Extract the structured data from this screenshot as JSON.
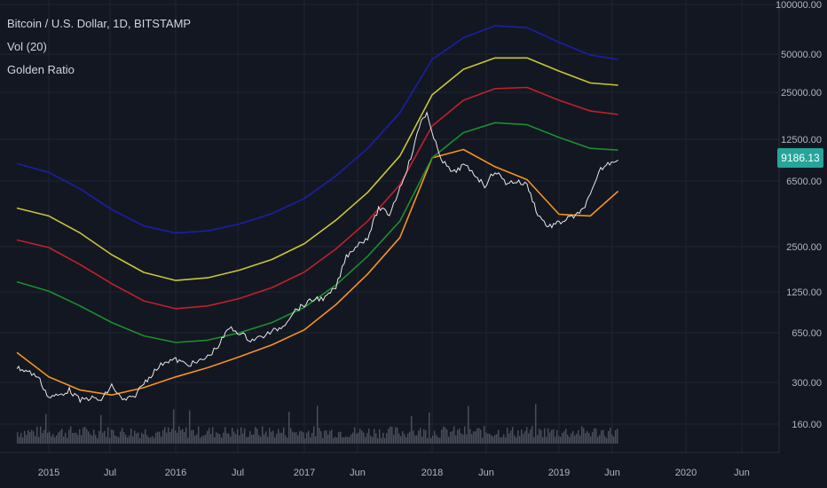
{
  "legend": {
    "symbol": "Bitcoin / U.S. Dollar, 1D, BITSTAMP",
    "volume": "Vol (20)",
    "indicator": "Golden Ratio"
  },
  "price_badge": "9186.13",
  "colors": {
    "background": "#131722",
    "grid": "#1f2433",
    "axis_text": "#b2b5be",
    "candle_up": "#e8e8e8",
    "candle_down": "#8a8e99",
    "volume": "#4a4e5a",
    "badge": "#26a69a",
    "ma": "#f7931e",
    "band_green": "#1b8f2c",
    "band_red": "#c0212a",
    "band_yellow": "#c9c633",
    "band_blue": "#1a1fa8"
  },
  "chart_data": {
    "type": "line",
    "scale": "log",
    "ylim": [
      100,
      100000
    ],
    "x_ticks": [
      "2015",
      "Jul",
      "2016",
      "Jul",
      "2017",
      "Jun",
      "2018",
      "Jun",
      "2019",
      "Jun",
      "2020",
      "Jun"
    ],
    "y_ticks": [
      "100000.00",
      "50000.00",
      "25000.00",
      "12500.00",
      "6500.00",
      "2500.00",
      "1250.00",
      "650.00",
      "300.00",
      "160.00"
    ],
    "series": [
      {
        "color": "#e8e8e8",
        "x": [
          "2014-10-01",
          "2014-11-01",
          "2014-12-01",
          "2015-01-01",
          "2015-02-01",
          "2015-03-01",
          "2015-04-01",
          "2015-05-01",
          "2015-06-01",
          "2015-07-01",
          "2015-08-01",
          "2015-09-01",
          "2015-10-01",
          "2015-11-01",
          "2015-12-01",
          "2016-01-01",
          "2016-02-01",
          "2016-03-01",
          "2016-04-01",
          "2016-05-01",
          "2016-06-01",
          "2016-07-01",
          "2016-08-01",
          "2016-09-01",
          "2016-10-01",
          "2016-11-01",
          "2016-12-01",
          "2017-01-01",
          "2017-02-01",
          "2017-03-01",
          "2017-04-01",
          "2017-05-01",
          "2017-06-01",
          "2017-07-01",
          "2017-08-01",
          "2017-09-01",
          "2017-10-01",
          "2017-11-01",
          "2017-12-01",
          "2017-12-17",
          "2018-01-01",
          "2018-02-01",
          "2018-03-01",
          "2018-04-01",
          "2018-05-01",
          "2018-06-01",
          "2018-07-01",
          "2018-08-01",
          "2018-09-01",
          "2018-10-01",
          "2018-11-01",
          "2018-12-01",
          "2019-01-01",
          "2019-02-01",
          "2019-03-01",
          "2019-04-01",
          "2019-05-01",
          "2019-06-01",
          "2019-06-20"
        ],
        "y": [
          380,
          360,
          330,
          240,
          250,
          270,
          230,
          240,
          230,
          290,
          230,
          240,
          300,
          360,
          420,
          430,
          400,
          410,
          450,
          530,
          700,
          650,
          580,
          610,
          660,
          720,
          900,
          1000,
          1100,
          1100,
          1300,
          2100,
          2500,
          2800,
          4400,
          4000,
          6000,
          9500,
          17000,
          19000,
          13500,
          9000,
          7500,
          8500,
          7500,
          6200,
          7800,
          6500,
          6600,
          6300,
          4000,
          3300,
          3500,
          3800,
          4000,
          5300,
          8000,
          9000,
          9186
        ]
      },
      {
        "color": "#f7931e",
        "x": [
          "2014-10-01",
          "2015-01-01",
          "2015-04-01",
          "2015-07-01",
          "2015-10-01",
          "2016-01-01",
          "2016-04-01",
          "2016-07-01",
          "2016-10-01",
          "2017-01-01",
          "2017-04-01",
          "2017-07-01",
          "2017-10-01",
          "2018-01-01",
          "2018-04-01",
          "2018-07-01",
          "2018-10-01",
          "2019-01-01",
          "2019-04-01",
          "2019-06-20"
        ],
        "y": [
          480,
          330,
          270,
          250,
          280,
          330,
          380,
          450,
          540,
          680,
          1000,
          1600,
          2800,
          9500,
          10800,
          8300,
          6800,
          4000,
          3900,
          5700
        ]
      },
      {
        "color": "#1b8f2c",
        "x": [
          "2014-10-01",
          "2015-01-01",
          "2015-04-01",
          "2015-07-01",
          "2015-10-01",
          "2016-01-01",
          "2016-04-01",
          "2016-07-01",
          "2016-10-01",
          "2017-01-01",
          "2017-04-01",
          "2017-07-01",
          "2017-10-01",
          "2018-01-01",
          "2018-04-01",
          "2018-07-01",
          "2018-10-01",
          "2019-01-01",
          "2019-04-01",
          "2019-06-20"
        ],
        "y": [
          1420,
          1230,
          980,
          760,
          620,
          560,
          580,
          650,
          760,
          960,
          1350,
          2100,
          3600,
          9500,
          14000,
          16300,
          15800,
          13000,
          11000,
          10700
        ]
      },
      {
        "color": "#c0212a",
        "x": [
          "2014-10-01",
          "2015-01-01",
          "2015-04-01",
          "2015-07-01",
          "2015-10-01",
          "2016-01-01",
          "2016-04-01",
          "2016-07-01",
          "2016-10-01",
          "2017-01-01",
          "2017-04-01",
          "2017-07-01",
          "2017-10-01",
          "2018-01-01",
          "2018-04-01",
          "2018-07-01",
          "2018-10-01",
          "2019-01-01",
          "2019-04-01",
          "2019-06-20"
        ],
        "y": [
          2700,
          2400,
          1850,
          1380,
          1060,
          940,
          980,
          1100,
          1300,
          1650,
          2350,
          3600,
          6300,
          15500,
          23000,
          27500,
          28000,
          23000,
          19500,
          18500
        ]
      },
      {
        "color": "#c9c633",
        "x": [
          "2014-10-01",
          "2015-01-01",
          "2015-04-01",
          "2015-07-01",
          "2015-10-01",
          "2016-01-01",
          "2016-04-01",
          "2016-07-01",
          "2016-10-01",
          "2017-01-01",
          "2017-04-01",
          "2017-07-01",
          "2017-10-01",
          "2018-01-01",
          "2018-04-01",
          "2018-07-01",
          "2018-10-01",
          "2019-01-01",
          "2019-04-01",
          "2019-06-20"
        ],
        "y": [
          4400,
          3900,
          3000,
          2150,
          1640,
          1450,
          1510,
          1700,
          2000,
          2550,
          3650,
          5600,
          9800,
          25000,
          37000,
          44000,
          44000,
          36000,
          30000,
          29000
        ]
      },
      {
        "color": "#1a1fa8",
        "x": [
          "2014-10-01",
          "2015-01-01",
          "2015-04-01",
          "2015-07-01",
          "2015-10-01",
          "2016-01-01",
          "2016-04-01",
          "2016-07-01",
          "2016-10-01",
          "2017-01-01",
          "2017-04-01",
          "2017-07-01",
          "2017-10-01",
          "2018-01-01",
          "2018-04-01",
          "2018-07-01",
          "2018-10-01",
          "2019-01-01",
          "2019-04-01",
          "2019-06-20"
        ],
        "y": [
          8700,
          7600,
          5900,
          4300,
          3350,
          3000,
          3100,
          3450,
          4050,
          5100,
          7200,
          11000,
          19000,
          43000,
          60000,
          72000,
          70000,
          56000,
          46000,
          43000
        ]
      }
    ]
  }
}
